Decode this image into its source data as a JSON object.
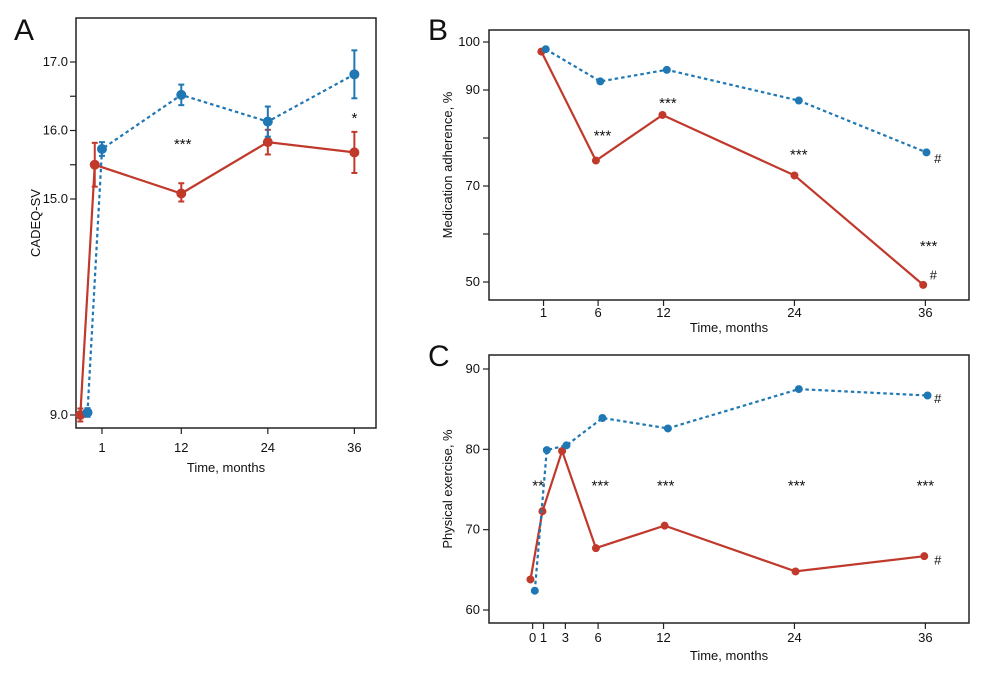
{
  "colors": {
    "blue": "#1f77b4",
    "red": "#c0392b"
  },
  "chart_data": [
    {
      "panel": "A",
      "type": "line",
      "title": "",
      "xlabel": "Time, months",
      "ylabel": "CADEQ-SV",
      "xticks": [
        1,
        12,
        24,
        36
      ],
      "yticks": [
        9.0,
        15.0,
        16.0,
        17.0
      ],
      "ytick_labels": [
        "9.0",
        "15.0",
        "16.0",
        "17.0"
      ],
      "minor_yticks": [
        15.5,
        16.5
      ],
      "series": [
        {
          "name": "blue",
          "style": "dashed",
          "points": [
            {
              "x": -1,
              "y": 9.07,
              "err": 0.12
            },
            {
              "x": 1,
              "y": 15.73,
              "err": 0.1
            },
            {
              "x": 12,
              "y": 16.52,
              "err": 0.15
            },
            {
              "x": 24,
              "y": 16.13,
              "err": 0.22
            },
            {
              "x": 36,
              "y": 16.82,
              "err": 0.35
            }
          ]
        },
        {
          "name": "red",
          "style": "solid",
          "points": [
            {
              "x": -2,
              "y": 9.0,
              "err": 0.18
            },
            {
              "x": 0,
              "y": 15.5,
              "err": 0.32
            },
            {
              "x": 12,
              "y": 15.08,
              "err": 0.15
            },
            {
              "x": 24,
              "y": 15.83,
              "err": 0.18
            },
            {
              "x": 36,
              "y": 15.68,
              "err": 0.3
            }
          ]
        }
      ],
      "annotations": [
        {
          "x": 12.2,
          "y": 15.8,
          "text": "***"
        },
        {
          "x": 36,
          "y": 16.18,
          "text": "*"
        }
      ]
    },
    {
      "panel": "B",
      "type": "line",
      "title": "",
      "xlabel": "Time, months",
      "ylabel": "Medication adherence, %",
      "xticks": [
        1,
        6,
        12,
        24,
        36
      ],
      "yticks": [
        50,
        70,
        90,
        100
      ],
      "ytick_labels": [
        "50",
        "70",
        "90",
        "100"
      ],
      "minor_yticks": [
        60,
        80
      ],
      "series": [
        {
          "name": "blue",
          "style": "dashed",
          "points": [
            {
              "x": 1.2,
              "y": 98.5
            },
            {
              "x": 6.2,
              "y": 91.8
            },
            {
              "x": 12.3,
              "y": 94.2
            },
            {
              "x": 24.4,
              "y": 87.8
            },
            {
              "x": 36.1,
              "y": 77.0
            }
          ]
        },
        {
          "name": "red",
          "style": "solid",
          "points": [
            {
              "x": 0.8,
              "y": 98.0
            },
            {
              "x": 5.8,
              "y": 75.3
            },
            {
              "x": 11.9,
              "y": 84.8
            },
            {
              "x": 24.0,
              "y": 72.2
            },
            {
              "x": 35.8,
              "y": 49.4
            }
          ]
        }
      ],
      "annotations": [
        {
          "x": 6.4,
          "y": 80.5,
          "text": "***"
        },
        {
          "x": 12.4,
          "y": 87.3,
          "text": "***"
        },
        {
          "x": 24.4,
          "y": 76.6,
          "text": "***"
        },
        {
          "x": 36.3,
          "y": 57.5,
          "text": "***"
        },
        {
          "x": 36.8,
          "y": 75.8,
          "text": "#"
        },
        {
          "x": 36.4,
          "y": 51.6,
          "text": "#"
        }
      ]
    },
    {
      "panel": "C",
      "type": "line",
      "title": "",
      "xlabel": "Time, months",
      "ylabel": "Physical exercise, %",
      "xticks": [
        0,
        1,
        3,
        6,
        12,
        24,
        36
      ],
      "yticks": [
        60,
        70,
        80,
        90
      ],
      "ytick_labels": [
        "60",
        "70",
        "80",
        "90"
      ],
      "minor_yticks": [],
      "series": [
        {
          "name": "blue",
          "style": "dashed",
          "points": [
            {
              "x": 0.2,
              "y": 62.4
            },
            {
              "x": 1.3,
              "y": 79.9
            },
            {
              "x": 3.1,
              "y": 80.5
            },
            {
              "x": 6.4,
              "y": 83.9
            },
            {
              "x": 12.4,
              "y": 82.6
            },
            {
              "x": 24.4,
              "y": 87.5
            },
            {
              "x": 36.2,
              "y": 86.7
            }
          ]
        },
        {
          "name": "red",
          "style": "solid",
          "points": [
            {
              "x": -0.2,
              "y": 63.8
            },
            {
              "x": 0.9,
              "y": 72.3
            },
            {
              "x": 2.7,
              "y": 79.8
            },
            {
              "x": 5.8,
              "y": 67.7
            },
            {
              "x": 12.1,
              "y": 70.5
            },
            {
              "x": 24.1,
              "y": 64.8
            },
            {
              "x": 35.9,
              "y": 66.7
            }
          ]
        }
      ],
      "annotations": [
        {
          "x": 0.5,
          "y": 75.5,
          "text": "**"
        },
        {
          "x": 6.2,
          "y": 75.5,
          "text": "***"
        },
        {
          "x": 12.2,
          "y": 75.5,
          "text": "***"
        },
        {
          "x": 24.2,
          "y": 75.5,
          "text": "***"
        },
        {
          "x": 36.0,
          "y": 75.5,
          "text": "***"
        },
        {
          "x": 36.8,
          "y": 86.4,
          "text": "#"
        },
        {
          "x": 36.8,
          "y": 66.3,
          "text": "#"
        }
      ]
    }
  ]
}
